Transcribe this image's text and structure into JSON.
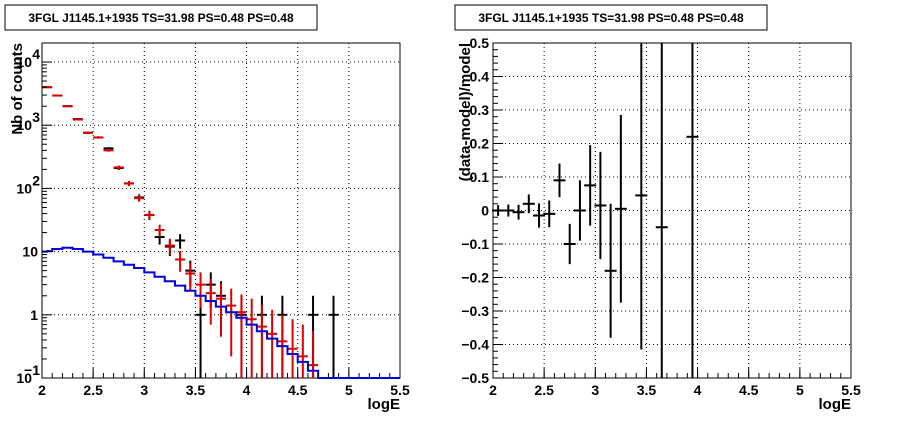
{
  "chart_data": [
    {
      "type": "scatter",
      "title": "3FGL J1145.1+1935 TS=31.98 PS=0.48 PS=0.48",
      "xlabel": "logE",
      "ylabel": "Nb of counts",
      "xlim": [
        2,
        5.5
      ],
      "ylim": [
        0.1,
        20000
      ],
      "log_y": true,
      "grid": true,
      "x_ticks": [
        "2",
        "2.5",
        "3",
        "3.5",
        "4",
        "4.5",
        "5",
        "5.5"
      ],
      "y_ticks": [
        {
          "value": 0.1,
          "label": "10",
          "sup": "−1"
        },
        {
          "value": 1,
          "label": "1",
          "sup": ""
        },
        {
          "value": 10,
          "label": "10",
          "sup": ""
        },
        {
          "value": 100,
          "label": "10",
          "sup": "2"
        },
        {
          "value": 1000,
          "label": "10",
          "sup": "3"
        },
        {
          "value": 10000,
          "label": "10",
          "sup": "4"
        }
      ],
      "colors": {
        "data": "#000000",
        "model": "#dd0000",
        "background": "#0000dd"
      },
      "series": [
        {
          "role": "data",
          "style": "errorbar",
          "points": [
            {
              "x": 2.05,
              "y": 4000,
              "lo": 3937,
              "hi": 4063
            },
            {
              "x": 2.15,
              "y": 2950,
              "lo": 2896,
              "hi": 3004
            },
            {
              "x": 2.25,
              "y": 2000,
              "lo": 1955,
              "hi": 2045
            },
            {
              "x": 2.35,
              "y": 1250,
              "lo": 1215,
              "hi": 1285
            },
            {
              "x": 2.45,
              "y": 760,
              "lo": 732,
              "hi": 788
            },
            {
              "x": 2.55,
              "y": 640,
              "lo": 615,
              "hi": 665
            },
            {
              "x": 2.65,
              "y": 430,
              "lo": 409,
              "hi": 451
            },
            {
              "x": 2.75,
              "y": 210,
              "lo": 196,
              "hi": 224
            },
            {
              "x": 2.85,
              "y": 120,
              "lo": 109,
              "hi": 131
            },
            {
              "x": 2.95,
              "y": 72,
              "lo": 63.5,
              "hi": 80.5
            },
            {
              "x": 3.05,
              "y": 38,
              "lo": 31.8,
              "hi": 44.2
            },
            {
              "x": 3.15,
              "y": 17,
              "lo": 12.9,
              "hi": 21.1
            },
            {
              "x": 3.25,
              "y": 12,
              "lo": 8.5,
              "hi": 15.5
            },
            {
              "x": 3.35,
              "y": 15,
              "lo": 11.1,
              "hi": 18.9
            },
            {
              "x": 3.45,
              "y": 5,
              "lo": 2.8,
              "hi": 7.2
            },
            {
              "x": 3.55,
              "y": 1,
              "lo": 0.1,
              "hi": 2
            },
            {
              "x": 3.65,
              "y": 3,
              "lo": 1.3,
              "hi": 4.7
            },
            {
              "x": 3.75,
              "y": 2,
              "lo": 0.6,
              "hi": 3.4
            },
            {
              "x": 3.95,
              "y": 1,
              "lo": 0.1,
              "hi": 2
            },
            {
              "x": 4.15,
              "y": 1,
              "lo": 0.1,
              "hi": 2
            },
            {
              "x": 4.35,
              "y": 1,
              "lo": 0.1,
              "hi": 2
            },
            {
              "x": 4.65,
              "y": 1,
              "lo": 0.1,
              "hi": 2
            },
            {
              "x": 4.85,
              "y": 1,
              "lo": 0.1,
              "hi": 2
            }
          ]
        },
        {
          "role": "model",
          "style": "errorbar",
          "points": [
            {
              "x": 2.05,
              "y": 4000,
              "lo": 3937,
              "hi": 4063
            },
            {
              "x": 2.15,
              "y": 2950,
              "lo": 2896,
              "hi": 3004
            },
            {
              "x": 2.25,
              "y": 2000,
              "lo": 1955,
              "hi": 2045
            },
            {
              "x": 2.35,
              "y": 1230,
              "lo": 1195,
              "hi": 1265
            },
            {
              "x": 2.45,
              "y": 760,
              "lo": 732,
              "hi": 788
            },
            {
              "x": 2.55,
              "y": 640,
              "lo": 615,
              "hi": 665
            },
            {
              "x": 2.65,
              "y": 400,
              "lo": 380,
              "hi": 420
            },
            {
              "x": 2.75,
              "y": 215,
              "lo": 200,
              "hi": 230
            },
            {
              "x": 2.85,
              "y": 120,
              "lo": 109,
              "hi": 131
            },
            {
              "x": 2.95,
              "y": 70,
              "lo": 61.6,
              "hi": 78.4
            },
            {
              "x": 3.05,
              "y": 38,
              "lo": 31.8,
              "hi": 44.2
            },
            {
              "x": 3.15,
              "y": 22,
              "lo": 17.3,
              "hi": 26.7
            },
            {
              "x": 3.25,
              "y": 12.5,
              "lo": 9,
              "hi": 16
            },
            {
              "x": 3.35,
              "y": 7.5,
              "lo": 4.8,
              "hi": 10.2
            },
            {
              "x": 3.45,
              "y": 4.5,
              "lo": 2.4,
              "hi": 6.6
            },
            {
              "x": 3.55,
              "y": 3,
              "lo": 1.3,
              "hi": 4.7
            },
            {
              "x": 3.65,
              "y": 2.2,
              "lo": 0.7,
              "hi": 3.7
            },
            {
              "x": 3.75,
              "y": 1.8,
              "lo": 0.45,
              "hi": 3.15
            },
            {
              "x": 3.85,
              "y": 1.4,
              "lo": 0.22,
              "hi": 2.6
            },
            {
              "x": 3.95,
              "y": 1.1,
              "lo": 0.1,
              "hi": 2.1
            },
            {
              "x": 4.05,
              "y": 0.85,
              "lo": 0.1,
              "hi": 1.8
            },
            {
              "x": 4.15,
              "y": 0.65,
              "lo": 0.1,
              "hi": 1.45
            },
            {
              "x": 4.25,
              "y": 0.5,
              "lo": 0.1,
              "hi": 1.2
            },
            {
              "x": 4.35,
              "y": 0.38,
              "lo": 0.1,
              "hi": 1
            },
            {
              "x": 4.45,
              "y": 0.29,
              "lo": 0.1,
              "hi": 0.85
            },
            {
              "x": 4.55,
              "y": 0.22,
              "lo": 0.1,
              "hi": 0.7
            },
            {
              "x": 4.65,
              "y": 0.16,
              "lo": 0.1,
              "hi": 0.56
            }
          ]
        },
        {
          "role": "background",
          "style": "step",
          "points": [
            {
              "x": 2.0,
              "y": 10.0
            },
            {
              "x": 2.05,
              "y": 10.2
            },
            {
              "x": 2.1,
              "y": 11.0
            },
            {
              "x": 2.2,
              "y": 11.5
            },
            {
              "x": 2.3,
              "y": 11.0
            },
            {
              "x": 2.4,
              "y": 10.0
            },
            {
              "x": 2.5,
              "y": 9.0
            },
            {
              "x": 2.6,
              "y": 8.0
            },
            {
              "x": 2.7,
              "y": 7.0
            },
            {
              "x": 2.8,
              "y": 6.2
            },
            {
              "x": 2.9,
              "y": 5.5
            },
            {
              "x": 3.0,
              "y": 4.7
            },
            {
              "x": 3.1,
              "y": 4.0
            },
            {
              "x": 3.2,
              "y": 3.4
            },
            {
              "x": 3.3,
              "y": 2.9
            },
            {
              "x": 3.4,
              "y": 2.4
            },
            {
              "x": 3.5,
              "y": 2.0
            },
            {
              "x": 3.6,
              "y": 1.65
            },
            {
              "x": 3.7,
              "y": 1.35
            },
            {
              "x": 3.8,
              "y": 1.1
            },
            {
              "x": 3.9,
              "y": 0.9
            },
            {
              "x": 4.0,
              "y": 0.7
            },
            {
              "x": 4.1,
              "y": 0.55
            },
            {
              "x": 4.2,
              "y": 0.42
            },
            {
              "x": 4.3,
              "y": 0.32
            },
            {
              "x": 4.4,
              "y": 0.24
            },
            {
              "x": 4.5,
              "y": 0.18
            },
            {
              "x": 4.6,
              "y": 0.13
            },
            {
              "x": 4.7,
              "y": 0.1
            }
          ]
        }
      ]
    },
    {
      "type": "scatter",
      "title": "3FGL J1145.1+1935 TS=31.98 PS=0.48 PS=0.48",
      "xlabel": "logE",
      "ylabel": "(data-model)/model",
      "xlim": [
        2,
        5.5
      ],
      "ylim": [
        -0.5,
        0.5
      ],
      "grid": true,
      "x_ticks": [
        "2",
        "2.5",
        "3",
        "3.5",
        "4",
        "4.5",
        "5",
        "5.5"
      ],
      "y_ticks": [
        "−0.5",
        "−0.4",
        "−0.3",
        "−0.2",
        "−0.1",
        "0",
        "0.1",
        "0.2",
        "0.3",
        "0.4",
        "0.5"
      ],
      "colors": {
        "data": "#000000"
      },
      "series": [
        {
          "role": "residual",
          "style": "errorbar",
          "points": [
            {
              "x": 2.05,
              "y": 0.0,
              "err": 0.016
            },
            {
              "x": 2.15,
              "y": 0.0,
              "err": 0.018
            },
            {
              "x": 2.25,
              "y": -0.005,
              "err": 0.022
            },
            {
              "x": 2.35,
              "y": 0.02,
              "err": 0.028
            },
            {
              "x": 2.45,
              "y": -0.015,
              "err": 0.036
            },
            {
              "x": 2.55,
              "y": -0.01,
              "err": 0.04
            },
            {
              "x": 2.65,
              "y": 0.09,
              "err": 0.05
            },
            {
              "x": 2.75,
              "y": -0.1,
              "err": 0.06
            },
            {
              "x": 2.85,
              "y": 0.0,
              "err": 0.09
            },
            {
              "x": 2.95,
              "y": 0.075,
              "err": 0.12
            },
            {
              "x": 3.05,
              "y": 0.015,
              "err": 0.16
            },
            {
              "x": 3.15,
              "y": -0.18,
              "err": 0.2
            },
            {
              "x": 3.25,
              "y": 0.005,
              "err": 0.28
            },
            {
              "x": 3.45,
              "y": 0.045,
              "err": 0.46
            },
            {
              "x": 3.65,
              "y": -0.05,
              "err": 0.8
            },
            {
              "x": 3.95,
              "y": 0.22,
              "err": 1.0
            }
          ]
        }
      ]
    }
  ]
}
